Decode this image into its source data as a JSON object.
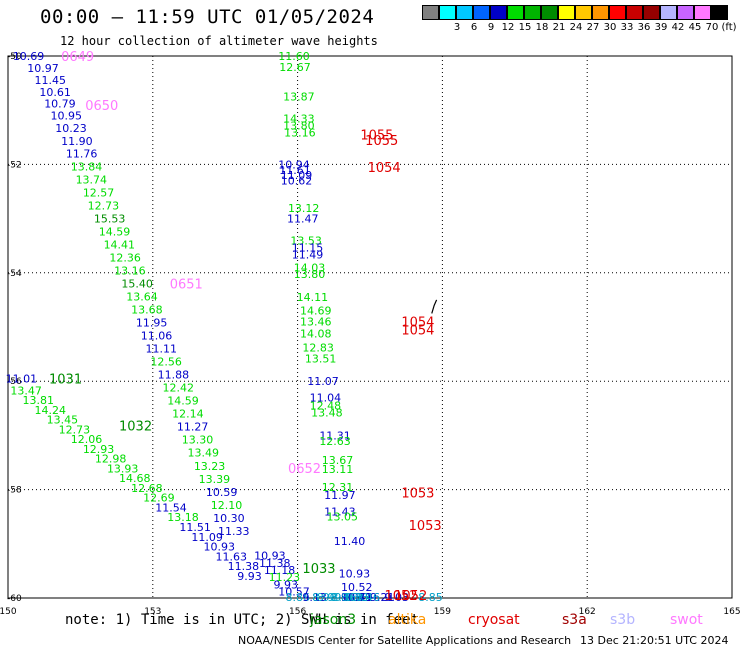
{
  "header": {
    "title": "00:00 – 11:59 UTC 01/05/2024",
    "subtitle": "12 hour collection of altimeter wave heights"
  },
  "legend": {
    "unit": "(ft)",
    "bins": [
      {
        "label": "",
        "color": "#808080"
      },
      {
        "label": "3",
        "color": "#00ffff"
      },
      {
        "label": "6",
        "color": "#00c8ff"
      },
      {
        "label": "9",
        "color": "#0064ff"
      },
      {
        "label": "12",
        "color": "#0000c8"
      },
      {
        "label": "15",
        "color": "#00dc00"
      },
      {
        "label": "18",
        "color": "#00b400"
      },
      {
        "label": "21",
        "color": "#008c00"
      },
      {
        "label": "24",
        "color": "#ffff00"
      },
      {
        "label": "27",
        "color": "#ffc800"
      },
      {
        "label": "30",
        "color": "#ff9600"
      },
      {
        "label": "33",
        "color": "#ff0000"
      },
      {
        "label": "36",
        "color": "#c80000"
      },
      {
        "label": "39",
        "color": "#960000"
      },
      {
        "label": "42",
        "color": "#b4b4ff"
      },
      {
        "label": "45",
        "color": "#c864ff"
      },
      {
        "label": "70",
        "color": "#ff78ff"
      },
      {
        "label": "",
        "color": "#000000"
      }
    ]
  },
  "map": {
    "lon_range": [
      150,
      165
    ],
    "lat_range": [
      -50,
      -60
    ],
    "lon_ticks": [
      "150",
      "153",
      "156",
      "159",
      "162",
      "165"
    ],
    "lat_ticks": [
      {
        "value": -50,
        "label": "-50"
      },
      {
        "value": -52,
        "label": "-52"
      },
      {
        "value": -54,
        "label": "-54"
      },
      {
        "value": -56,
        "label": "-56"
      },
      {
        "value": -58,
        "label": "-58"
      },
      {
        "value": -60,
        "label": "-60"
      }
    ],
    "coastlines": [
      {
        "name": "macquarie-island",
        "points": [
          [
            158.88,
            -54.5
          ],
          [
            158.83,
            -54.6
          ],
          [
            158.78,
            -54.75
          ]
        ]
      }
    ],
    "palette": {
      "navy": "#0000c8",
      "green": "#00dc00",
      "dkgreen": "#008c00",
      "teal": "#00a0c8",
      "red": "#e00000",
      "pink": "#ff78ff"
    },
    "labels": [
      {
        "lon": 150.1,
        "lat": -50.0,
        "text": "10.69",
        "c": "navy"
      },
      {
        "lon": 150.4,
        "lat": -50.22,
        "text": "10.97",
        "c": "navy"
      },
      {
        "lon": 150.55,
        "lat": -50.44,
        "text": "11.45",
        "c": "navy"
      },
      {
        "lon": 150.65,
        "lat": -50.66,
        "text": "10.61",
        "c": "navy"
      },
      {
        "lon": 150.75,
        "lat": -50.88,
        "text": "10.79",
        "c": "navy"
      },
      {
        "lon": 150.88,
        "lat": -51.1,
        "text": "10.95",
        "c": "navy"
      },
      {
        "lon": 150.98,
        "lat": -51.33,
        "text": "10.23",
        "c": "navy"
      },
      {
        "lon": 151.1,
        "lat": -51.57,
        "text": "11.90",
        "c": "navy"
      },
      {
        "lon": 151.2,
        "lat": -51.8,
        "text": "11.76",
        "c": "navy"
      },
      {
        "lon": 151.3,
        "lat": -52.04,
        "text": "13.84",
        "c": "green"
      },
      {
        "lon": 151.4,
        "lat": -52.28,
        "text": "13.74",
        "c": "green"
      },
      {
        "lon": 151.55,
        "lat": -52.52,
        "text": "12.57",
        "c": "green"
      },
      {
        "lon": 151.65,
        "lat": -52.76,
        "text": "12.73",
        "c": "green"
      },
      {
        "lon": 151.78,
        "lat": -53.0,
        "text": "15.53",
        "c": "dkgreen"
      },
      {
        "lon": 151.88,
        "lat": -53.24,
        "text": "14.59",
        "c": "green"
      },
      {
        "lon": 151.98,
        "lat": -53.48,
        "text": "14.41",
        "c": "green"
      },
      {
        "lon": 152.1,
        "lat": -53.72,
        "text": "12.36",
        "c": "green"
      },
      {
        "lon": 152.2,
        "lat": -53.96,
        "text": "13.16",
        "c": "green"
      },
      {
        "lon": 152.35,
        "lat": -54.2,
        "text": "15.40",
        "c": "dkgreen"
      },
      {
        "lon": 152.45,
        "lat": -54.44,
        "text": "13.64",
        "c": "green"
      },
      {
        "lon": 152.55,
        "lat": -54.68,
        "text": "13.68",
        "c": "green"
      },
      {
        "lon": 152.65,
        "lat": -54.92,
        "text": "11.95",
        "c": "navy"
      },
      {
        "lon": 152.75,
        "lat": -55.16,
        "text": "11.06",
        "c": "navy"
      },
      {
        "lon": 152.85,
        "lat": -55.4,
        "text": "11.11",
        "c": "navy"
      },
      {
        "lon": 152.95,
        "lat": -55.64,
        "text": "12.56",
        "c": "green"
      },
      {
        "lon": 153.1,
        "lat": -55.88,
        "text": "11.88",
        "c": "navy"
      },
      {
        "lon": 153.2,
        "lat": -56.12,
        "text": "12.42",
        "c": "green"
      },
      {
        "lon": 153.3,
        "lat": -56.36,
        "text": "14.59",
        "c": "green"
      },
      {
        "lon": 153.4,
        "lat": -56.6,
        "text": "12.14",
        "c": "green"
      },
      {
        "lon": 153.5,
        "lat": -56.84,
        "text": "11.27",
        "c": "navy"
      },
      {
        "lon": 153.6,
        "lat": -57.08,
        "text": "13.30",
        "c": "green"
      },
      {
        "lon": 153.72,
        "lat": -57.32,
        "text": "13.49",
        "c": "green"
      },
      {
        "lon": 153.85,
        "lat": -57.56,
        "text": "13.23",
        "c": "green"
      },
      {
        "lon": 153.95,
        "lat": -57.8,
        "text": "13.39",
        "c": "green"
      },
      {
        "lon": 154.1,
        "lat": -58.04,
        "text": "10.59",
        "c": "navy"
      },
      {
        "lon": 154.2,
        "lat": -58.28,
        "text": "12.10",
        "c": "green"
      },
      {
        "lon": 154.25,
        "lat": -58.52,
        "text": "10.30",
        "c": "navy"
      },
      {
        "lon": 154.35,
        "lat": -58.76,
        "text": "11.33",
        "c": "navy"
      },
      {
        "lon": 149.95,
        "lat": -55.95,
        "text": "11.01",
        "c": "navy"
      },
      {
        "lon": 150.05,
        "lat": -56.17,
        "text": "13.47",
        "c": "green"
      },
      {
        "lon": 150.3,
        "lat": -56.35,
        "text": "13.81",
        "c": "green"
      },
      {
        "lon": 150.55,
        "lat": -56.53,
        "text": "14.24",
        "c": "green"
      },
      {
        "lon": 150.8,
        "lat": -56.71,
        "text": "13.45",
        "c": "green"
      },
      {
        "lon": 151.05,
        "lat": -56.89,
        "text": "12.73",
        "c": "green"
      },
      {
        "lon": 151.3,
        "lat": -57.07,
        "text": "12.06",
        "c": "green"
      },
      {
        "lon": 151.55,
        "lat": -57.25,
        "text": "12.93",
        "c": "green"
      },
      {
        "lon": 151.8,
        "lat": -57.43,
        "text": "12.98",
        "c": "green"
      },
      {
        "lon": 152.05,
        "lat": -57.61,
        "text": "13.93",
        "c": "green"
      },
      {
        "lon": 152.3,
        "lat": -57.79,
        "text": "14.68",
        "c": "green"
      },
      {
        "lon": 152.55,
        "lat": -57.97,
        "text": "12.68",
        "c": "green"
      },
      {
        "lon": 152.8,
        "lat": -58.15,
        "text": "12.69",
        "c": "green"
      },
      {
        "lon": 153.05,
        "lat": -58.33,
        "text": "11.54",
        "c": "navy"
      },
      {
        "lon": 153.3,
        "lat": -58.51,
        "text": "13.18",
        "c": "green"
      },
      {
        "lon": 153.55,
        "lat": -58.69,
        "text": "11.51",
        "c": "navy"
      },
      {
        "lon": 153.8,
        "lat": -58.87,
        "text": "11.09",
        "c": "navy"
      },
      {
        "lon": 154.05,
        "lat": -59.05,
        "text": "10.93",
        "c": "navy"
      },
      {
        "lon": 154.3,
        "lat": -59.23,
        "text": "11.63",
        "c": "navy"
      },
      {
        "lon": 154.55,
        "lat": -59.41,
        "text": "11.38",
        "c": "navy"
      },
      {
        "lon": 154.75,
        "lat": -59.59,
        "text": "9.93",
        "c": "navy"
      },
      {
        "lon": 155.6,
        "lat": -50.0,
        "text": "11.60",
        "c": "green"
      },
      {
        "lon": 155.62,
        "lat": -50.2,
        "text": "12.67",
        "c": "green"
      },
      {
        "lon": 155.7,
        "lat": -50.75,
        "text": "13.87",
        "c": "green"
      },
      {
        "lon": 155.7,
        "lat": -51.15,
        "text": "14.33",
        "c": "green"
      },
      {
        "lon": 155.7,
        "lat": -51.28,
        "text": "13.80",
        "c": "green"
      },
      {
        "lon": 155.72,
        "lat": -51.41,
        "text": "13.16",
        "c": "green"
      },
      {
        "lon": 155.6,
        "lat": -52.0,
        "text": "10.94",
        "c": "navy"
      },
      {
        "lon": 155.62,
        "lat": -52.1,
        "text": "11.61",
        "c": "navy"
      },
      {
        "lon": 155.65,
        "lat": -52.2,
        "text": "11.09",
        "c": "navy"
      },
      {
        "lon": 155.65,
        "lat": -52.3,
        "text": "10.62",
        "c": "navy"
      },
      {
        "lon": 155.8,
        "lat": -52.8,
        "text": "13.12",
        "c": "green"
      },
      {
        "lon": 155.78,
        "lat": -53.0,
        "text": "11.47",
        "c": "navy"
      },
      {
        "lon": 155.85,
        "lat": -53.4,
        "text": "13.53",
        "c": "green"
      },
      {
        "lon": 155.88,
        "lat": -53.53,
        "text": "11.15",
        "c": "navy"
      },
      {
        "lon": 155.88,
        "lat": -53.66,
        "text": "11.49",
        "c": "navy"
      },
      {
        "lon": 155.92,
        "lat": -53.9,
        "text": "14.03",
        "c": "green"
      },
      {
        "lon": 155.92,
        "lat": -54.02,
        "text": "13.80",
        "c": "green"
      },
      {
        "lon": 155.98,
        "lat": -54.45,
        "text": "14.11",
        "c": "green"
      },
      {
        "lon": 156.05,
        "lat": -54.7,
        "text": "14.69",
        "c": "green"
      },
      {
        "lon": 156.05,
        "lat": -54.9,
        "text": "13.46",
        "c": "green"
      },
      {
        "lon": 156.05,
        "lat": -55.12,
        "text": "14.08",
        "c": "green"
      },
      {
        "lon": 156.1,
        "lat": -55.38,
        "text": "12.83",
        "c": "green"
      },
      {
        "lon": 156.15,
        "lat": -55.58,
        "text": "13.51",
        "c": "green"
      },
      {
        "lon": 156.2,
        "lat": -56.0,
        "text": "11.07",
        "c": "navy"
      },
      {
        "lon": 156.25,
        "lat": -56.3,
        "text": "11.04",
        "c": "navy"
      },
      {
        "lon": 156.25,
        "lat": -56.45,
        "text": "12.48",
        "c": "green"
      },
      {
        "lon": 156.28,
        "lat": -56.58,
        "text": "13.48",
        "c": "green"
      },
      {
        "lon": 156.45,
        "lat": -57.0,
        "text": "11.31",
        "c": "navy"
      },
      {
        "lon": 156.45,
        "lat": -57.1,
        "text": "12.63",
        "c": "green"
      },
      {
        "lon": 156.5,
        "lat": -57.45,
        "text": "13.67",
        "c": "green"
      },
      {
        "lon": 156.5,
        "lat": -57.62,
        "text": "13.11",
        "c": "green"
      },
      {
        "lon": 156.5,
        "lat": -57.95,
        "text": "12.31",
        "c": "green"
      },
      {
        "lon": 156.55,
        "lat": -58.1,
        "text": "11.97",
        "c": "navy"
      },
      {
        "lon": 156.55,
        "lat": -58.4,
        "text": "11.43",
        "c": "navy"
      },
      {
        "lon": 156.6,
        "lat": -58.5,
        "text": "13.05",
        "c": "green"
      },
      {
        "lon": 156.75,
        "lat": -58.95,
        "text": "11.40",
        "c": "navy"
      },
      {
        "lon": 155.1,
        "lat": -59.22,
        "text": "10.93",
        "c": "navy"
      },
      {
        "lon": 155.2,
        "lat": -59.35,
        "text": "11.38",
        "c": "navy"
      },
      {
        "lon": 155.3,
        "lat": -59.48,
        "text": "11.18",
        "c": "navy"
      },
      {
        "lon": 155.4,
        "lat": -59.61,
        "text": "11.23",
        "c": "green"
      },
      {
        "lon": 155.5,
        "lat": -59.75,
        "text": "9.93",
        "c": "navy"
      },
      {
        "lon": 155.6,
        "lat": -59.88,
        "text": "10.57",
        "c": "navy"
      },
      {
        "lon": 155.75,
        "lat": -60.15,
        "text": "8.86",
        "c": "teal"
      },
      {
        "lon": 156.85,
        "lat": -59.55,
        "text": "10.93",
        "c": "navy"
      },
      {
        "lon": 156.9,
        "lat": -59.8,
        "text": "10.52",
        "c": "navy"
      },
      {
        "lon": 156.9,
        "lat": -60.05,
        "text": "9.04",
        "c": "navy"
      },
      {
        "lon": 156.4,
        "lat": -60.1,
        "text": "8.99",
        "c": "teal"
      },
      {
        "lon": 156.9,
        "lat": -60.25,
        "text": "8.61",
        "c": "teal"
      },
      {
        "lon": 156.95,
        "lat": -60.4,
        "text": "8.38",
        "c": "teal"
      },
      {
        "lon": 157.0,
        "lat": -60.5,
        "text": "8.23",
        "c": "teal"
      },
      {
        "lon": 157.2,
        "lat": -60.55,
        "text": "8.16",
        "c": "navy"
      },
      {
        "lon": 156.9,
        "lat": -60.65,
        "text": "10.71",
        "c": "navy"
      },
      {
        "lon": 157.5,
        "lat": -60.65,
        "text": "9.21",
        "c": "navy"
      },
      {
        "lon": 156.1,
        "lat": -60.45,
        "text": "9.13",
        "c": "navy"
      },
      {
        "lon": 156.3,
        "lat": -60.7,
        "text": "8.90",
        "c": "teal"
      },
      {
        "lon": 157.8,
        "lat": -60.85,
        "text": "9.03",
        "c": "navy"
      },
      {
        "lon": 156.7,
        "lat": -60.98,
        "text": "8.36",
        "c": "teal"
      },
      {
        "lon": 157.2,
        "lat": -60.98,
        "text": "8.46",
        "c": "teal"
      },
      {
        "lon": 158.5,
        "lat": -61.0,
        "text": "8.85",
        "c": "teal"
      }
    ],
    "tracks": [
      {
        "lon": 151.1,
        "lat": -50.0,
        "text": "0649",
        "c": "pink"
      },
      {
        "lon": 151.6,
        "lat": -50.9,
        "text": "0650",
        "c": "pink"
      },
      {
        "lon": 153.35,
        "lat": -54.2,
        "text": "0651",
        "c": "pink"
      },
      {
        "lon": 155.8,
        "lat": -57.6,
        "text": "0652",
        "c": "pink"
      },
      {
        "lon": 157.3,
        "lat": -51.45,
        "text": "1055",
        "c": "red"
      },
      {
        "lon": 157.4,
        "lat": -51.55,
        "text": "1055",
        "c": "red"
      },
      {
        "lon": 157.45,
        "lat": -52.05,
        "text": "1054",
        "c": "red"
      },
      {
        "lon": 158.15,
        "lat": -54.9,
        "text": "1054",
        "c": "red"
      },
      {
        "lon": 158.15,
        "lat": -55.05,
        "text": "1054",
        "c": "red"
      },
      {
        "lon": 158.15,
        "lat": -58.05,
        "text": "1053",
        "c": "red"
      },
      {
        "lon": 158.3,
        "lat": -58.65,
        "text": "1053",
        "c": "red"
      },
      {
        "lon": 158.0,
        "lat": -60.55,
        "text": "1052",
        "c": "red"
      },
      {
        "lon": 157.8,
        "lat": -60.95,
        "text": "1052",
        "c": "red"
      },
      {
        "lon": 150.85,
        "lat": -55.95,
        "text": "1031",
        "c": "dkgreen"
      },
      {
        "lon": 152.3,
        "lat": -56.82,
        "text": "1032",
        "c": "dkgreen"
      },
      {
        "lon": 156.1,
        "lat": -59.45,
        "text": "1033",
        "c": "dkgreen"
      }
    ]
  },
  "footer": {
    "note": "note: 1) Time is in UTC; 2) SWH is in feet",
    "satellites": [
      {
        "name": "jason3",
        "color": "#008c00"
      },
      {
        "name": "altika",
        "color": "#ff9600"
      },
      {
        "name": "cryosat",
        "color": "#e00000"
      },
      {
        "name": "s3a",
        "color": "#a00000"
      },
      {
        "name": "s3b",
        "color": "#b4b4ff"
      },
      {
        "name": "swot",
        "color": "#ff78ff"
      }
    ],
    "credit": "NOAA/NESDIS Center for Satellite Applications and Research",
    "timestamp": "13 Dec 21:20:51 UTC 2024"
  }
}
